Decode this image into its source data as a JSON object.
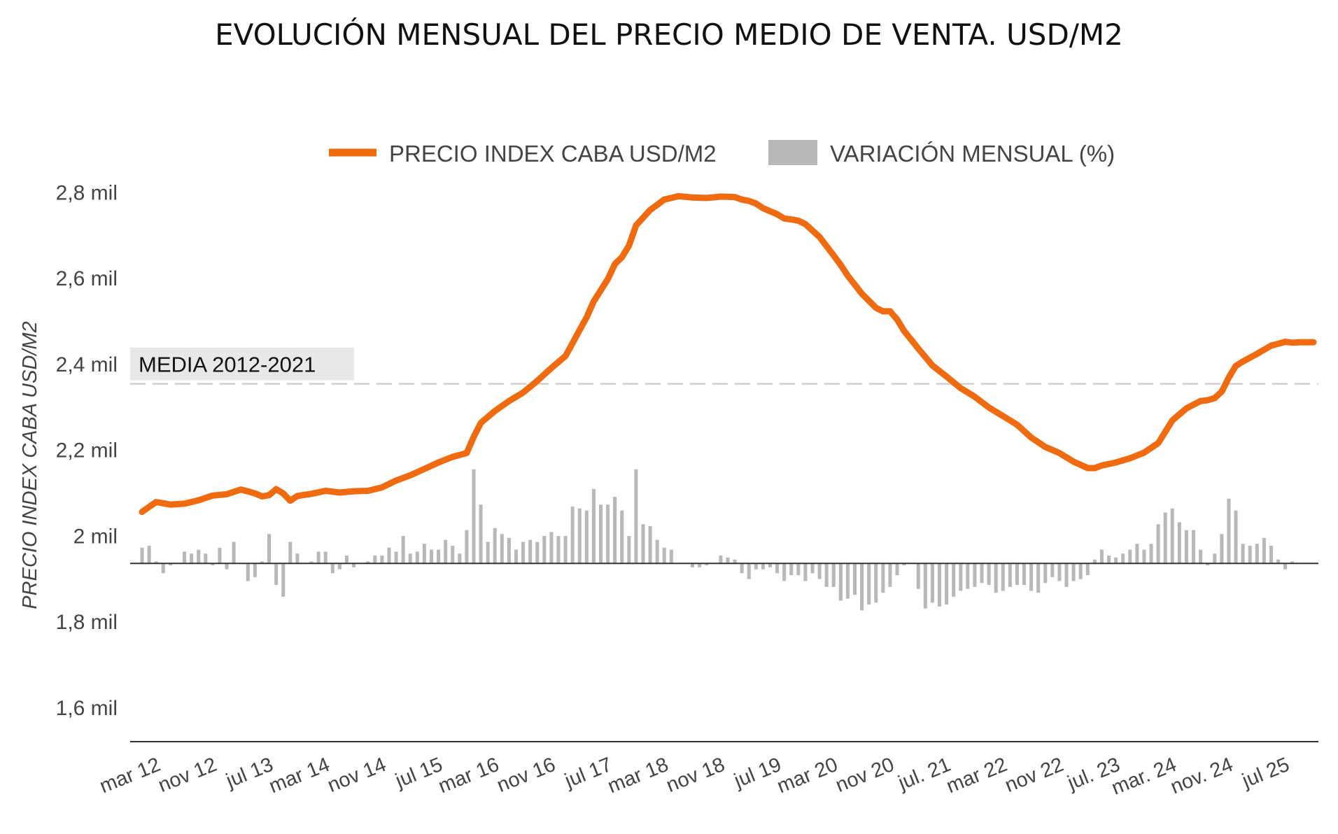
{
  "colors": {
    "price_line": "#f06a0f",
    "bars": "#b8b8b8",
    "baseline": "#333333",
    "media_line": "#cfcfcf",
    "media_box": "#e8e8e8",
    "text": "#444444"
  },
  "chart_data": {
    "type": "line+bar",
    "title": "EVOLUCIÓN MENSUAL DEL PRECIO MEDIO DE VENTA. USD/M2",
    "ylabel": "PRECIO INDEX CABA USD/M2",
    "legend_position": "top-center",
    "legend": [
      {
        "label": "PRECIO INDEX CABA USD/M2",
        "kind": "line"
      },
      {
        "label": "VARIACIÓN MENSUAL (%)",
        "kind": "bar"
      }
    ],
    "y_axis": {
      "min": 1520,
      "max": 2820,
      "ticks": [
        {
          "value": 2800,
          "label": "2,8 mil"
        },
        {
          "value": 2600,
          "label": "2,6 mil"
        },
        {
          "value": 2400,
          "label": "2,4 mil"
        },
        {
          "value": 2200,
          "label": "2,2 mil"
        },
        {
          "value": 2000,
          "label": "2 mil"
        },
        {
          "value": 1800,
          "label": "1,8 mil"
        },
        {
          "value": 1600,
          "label": "1,6 mil"
        }
      ]
    },
    "x_axis": {
      "start": "2012-03",
      "months": 167,
      "ticks": [
        {
          "month": 0,
          "label": "mar 12"
        },
        {
          "month": 8,
          "label": "nov 12"
        },
        {
          "month": 16,
          "label": "jul 13"
        },
        {
          "month": 24,
          "label": "mar 14"
        },
        {
          "month": 32,
          "label": "nov 14"
        },
        {
          "month": 40,
          "label": "jul 15"
        },
        {
          "month": 48,
          "label": "mar 16"
        },
        {
          "month": 56,
          "label": "nov 16"
        },
        {
          "month": 64,
          "label": "jul 17"
        },
        {
          "month": 72,
          "label": "mar 18"
        },
        {
          "month": 80,
          "label": "nov 18"
        },
        {
          "month": 88,
          "label": "jul 19"
        },
        {
          "month": 96,
          "label": "mar 20"
        },
        {
          "month": 104,
          "label": "nov 20"
        },
        {
          "month": 112,
          "label": "jul. 21"
        },
        {
          "month": 120,
          "label": "mar 22"
        },
        {
          "month": 128,
          "label": "nov 22"
        },
        {
          "month": 136,
          "label": "jul. 23"
        },
        {
          "month": 144,
          "label": "mar. 24"
        },
        {
          "month": 152,
          "label": "nov. 24"
        },
        {
          "month": 160,
          "label": "jul 25"
        }
      ]
    },
    "reference_line": {
      "label": "MEDIA 2012-2021",
      "value": 2353
    },
    "variation_baseline_value": 1935,
    "price_anchors": [
      [
        0,
        2055
      ],
      [
        2,
        2078
      ],
      [
        4,
        2072
      ],
      [
        6,
        2074
      ],
      [
        8,
        2082
      ],
      [
        10,
        2093
      ],
      [
        12,
        2096
      ],
      [
        14,
        2107
      ],
      [
        16,
        2098
      ],
      [
        17,
        2091
      ],
      [
        18,
        2094
      ],
      [
        19,
        2108
      ],
      [
        20,
        2098
      ],
      [
        21,
        2081
      ],
      [
        22,
        2092
      ],
      [
        24,
        2097
      ],
      [
        26,
        2104
      ],
      [
        28,
        2100
      ],
      [
        30,
        2103
      ],
      [
        32,
        2104
      ],
      [
        34,
        2112
      ],
      [
        36,
        2128
      ],
      [
        38,
        2140
      ],
      [
        40,
        2155
      ],
      [
        42,
        2170
      ],
      [
        44,
        2183
      ],
      [
        46,
        2192
      ],
      [
        47,
        2230
      ],
      [
        48,
        2262
      ],
      [
        50,
        2290
      ],
      [
        52,
        2313
      ],
      [
        54,
        2333
      ],
      [
        56,
        2360
      ],
      [
        58,
        2390
      ],
      [
        60,
        2418
      ],
      [
        62,
        2478
      ],
      [
        63,
        2508
      ],
      [
        64,
        2545
      ],
      [
        66,
        2597
      ],
      [
        67,
        2632
      ],
      [
        68,
        2648
      ],
      [
        69,
        2675
      ],
      [
        70,
        2722
      ],
      [
        72,
        2758
      ],
      [
        74,
        2782
      ],
      [
        76,
        2790
      ],
      [
        78,
        2787
      ],
      [
        80,
        2786
      ],
      [
        82,
        2789
      ],
      [
        84,
        2788
      ],
      [
        85,
        2782
      ],
      [
        86,
        2779
      ],
      [
        87,
        2773
      ],
      [
        88,
        2762
      ],
      [
        90,
        2748
      ],
      [
        91,
        2738
      ],
      [
        92,
        2736
      ],
      [
        93,
        2733
      ],
      [
        94,
        2725
      ],
      [
        96,
        2695
      ],
      [
        98,
        2652
      ],
      [
        99,
        2630
      ],
      [
        100,
        2605
      ],
      [
        102,
        2563
      ],
      [
        104,
        2530
      ],
      [
        105,
        2522
      ],
      [
        106,
        2522
      ],
      [
        107,
        2503
      ],
      [
        108,
        2476
      ],
      [
        110,
        2435
      ],
      [
        112,
        2396
      ],
      [
        114,
        2370
      ],
      [
        116,
        2343
      ],
      [
        118,
        2323
      ],
      [
        120,
        2298
      ],
      [
        122,
        2278
      ],
      [
        124,
        2258
      ],
      [
        126,
        2228
      ],
      [
        128,
        2206
      ],
      [
        130,
        2192
      ],
      [
        132,
        2172
      ],
      [
        134,
        2157
      ],
      [
        135,
        2157
      ],
      [
        136,
        2163
      ],
      [
        138,
        2170
      ],
      [
        140,
        2180
      ],
      [
        142,
        2193
      ],
      [
        144,
        2215
      ],
      [
        146,
        2268
      ],
      [
        148,
        2296
      ],
      [
        150,
        2313
      ],
      [
        151,
        2315
      ],
      [
        152,
        2320
      ],
      [
        153,
        2335
      ],
      [
        154,
        2368
      ],
      [
        155,
        2395
      ],
      [
        156,
        2405
      ],
      [
        158,
        2423
      ],
      [
        160,
        2442
      ],
      [
        162,
        2451
      ],
      [
        163,
        2449
      ],
      [
        164,
        2450
      ]
    ],
    "variation_values": [
      0.8,
      0.9,
      0.1,
      -0.5,
      -0.1,
      0,
      0.6,
      0.5,
      0.7,
      0.5,
      -0.1,
      0.8,
      -0.3,
      1.1,
      0,
      -0.9,
      -0.7,
      0.1,
      1.5,
      -1.1,
      -1.7,
      1.1,
      0.5,
      0,
      0.1,
      0.6,
      0.6,
      -0.5,
      -0.3,
      0.4,
      -0.2,
      0,
      0.1,
      0.4,
      0.4,
      0.8,
      0.6,
      1.4,
      0.5,
      0.6,
      1.0,
      0.7,
      0.7,
      1.2,
      0.9,
      0.5,
      1.7,
      4.8,
      3.0,
      1.1,
      1.8,
      1.5,
      1.3,
      0.7,
      1.1,
      1.2,
      1.1,
      1.4,
      1.6,
      1.4,
      1.4,
      2.9,
      2.8,
      2.7,
      3.8,
      3.0,
      3.0,
      3.4,
      2.7,
      1.4,
      4.8,
      2.0,
      1.9,
      1.2,
      0.8,
      0.7,
      0,
      0,
      -0.2,
      -0.2,
      -0.1,
      0,
      0.4,
      0.3,
      0.2,
      -0.5,
      -0.8,
      -0.3,
      -0.3,
      -0.2,
      -0.5,
      -0.9,
      -0.6,
      -0.6,
      -0.9,
      -0.5,
      -0.8,
      -1.2,
      -1.2,
      -1.9,
      -1.8,
      -1.6,
      -2.4,
      -2.1,
      -2.0,
      -1.5,
      -1.2,
      -0.6,
      -0.1,
      0,
      -1.3,
      -2.3,
      -2.0,
      -2.2,
      -2.1,
      -1.7,
      -1.4,
      -1.3,
      -1.2,
      -1.0,
      -1.1,
      -1.5,
      -1.4,
      -1.2,
      -1.1,
      -1.1,
      -1.4,
      -1.5,
      -1.0,
      -0.7,
      -0.9,
      -1.2,
      -0.9,
      -0.8,
      -0.6,
      0.2,
      0.7,
      0.4,
      0.3,
      0.5,
      0.7,
      1.0,
      0.7,
      1.0,
      2.0,
      2.6,
      2.8,
      2.1,
      1.7,
      1.7,
      0.7,
      -0.1,
      0.5,
      1.5,
      3.3,
      2.7,
      1.0,
      0.9,
      1.0,
      1.3,
      0.9,
      0.2,
      -0.3,
      0.1
    ]
  }
}
